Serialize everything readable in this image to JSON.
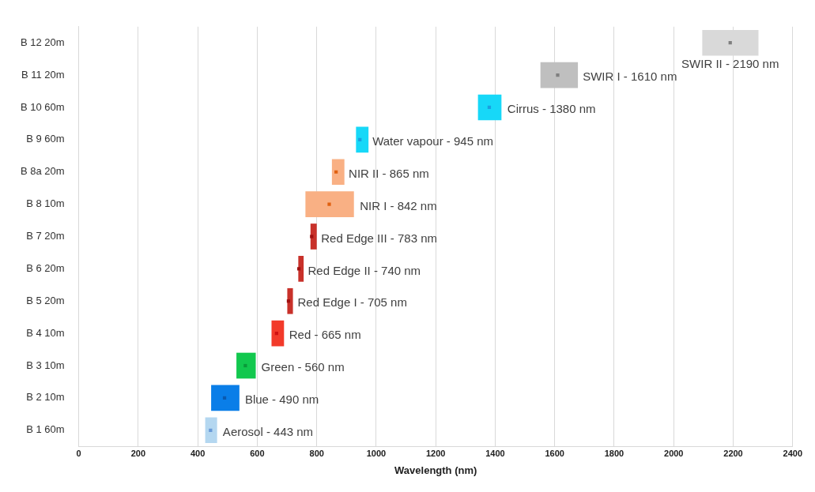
{
  "chart_data": {
    "type": "bar",
    "orientation": "horizontal",
    "xlabel": "Wavelength (nm)",
    "categories": [
      "B 12 20m",
      "B 11 20m",
      "B 10 60m",
      "B 9 60m",
      "B 8a 20m",
      "B 8 10m",
      "B 7 20m",
      "B 6 20m",
      "B 5 20m",
      "B 4 10m",
      "B 3 10m",
      "B 2 10m",
      "B 1 60m"
    ],
    "series": [
      {
        "base": [
          2096,
          1552,
          1342,
          932,
          851,
          762,
          779,
          738,
          701,
          648,
          530,
          445,
          425
        ],
        "values": [
          189,
          126,
          79,
          42,
          42,
          163,
          21,
          18,
          19,
          42,
          65,
          95,
          40
        ],
        "colors": [
          "#d9d9d9",
          "#bfbfbf",
          "#17d8f8",
          "#17d8f8",
          "#f9b084",
          "#f9b084",
          "#c8312a",
          "#c8312a",
          "#c8312a",
          "#f23a2a",
          "#12c84e",
          "#0a7ee8",
          "#b4d7f0"
        ]
      },
      {
        "type": "scatter",
        "marker": "square",
        "values": [
          2190,
          1610,
          1380,
          945,
          865,
          842,
          783,
          740,
          705,
          665,
          560,
          490,
          443
        ],
        "colors": [
          "#7f7f7f",
          "#7f7f7f",
          "#1a9fe0",
          "#1a9fe0",
          "#e06010",
          "#e06010",
          "#a01010",
          "#a01010",
          "#a01010",
          "#d01010",
          "#0a9a3a",
          "#0a5ab0",
          "#6a9ad8"
        ]
      }
    ],
    "annotations": [
      {
        "text": "SWIR II - 2190 nm",
        "x": 2190,
        "y": "B 12 20m"
      },
      {
        "text": "SWIR I - 1610 nm",
        "x": 1610,
        "y": "B 11 20m"
      },
      {
        "text": "Cirrus - 1380 nm",
        "x": 1380,
        "y": "B 10 60m"
      },
      {
        "text": "Water vapour - 945 nm",
        "x": 945,
        "y": "B 9 60m"
      },
      {
        "text": "NIR II - 865 nm",
        "x": 865,
        "y": "B 8a 20m"
      },
      {
        "text": "NIR I - 842 nm",
        "x": 842,
        "y": "B 8 10m"
      },
      {
        "text": "Red Edge III - 783 nm",
        "x": 783,
        "y": "B 7 20m"
      },
      {
        "text": "Red Edge II - 740 nm",
        "x": 740,
        "y": "B 6 20m"
      },
      {
        "text": "Red Edge I - 705 nm",
        "x": 705,
        "y": "B 5 20m"
      },
      {
        "text": "Red - 665 nm",
        "x": 665,
        "y": "B 4 10m"
      },
      {
        "text": "Green - 560 nm",
        "x": 560,
        "y": "B 3 10m"
      },
      {
        "text": "Blue - 490 nm",
        "x": 490,
        "y": "B 2 10m"
      },
      {
        "text": "Aerosol - 443 nm",
        "x": 443,
        "y": "B 1 60m"
      }
    ],
    "xlim": [
      0,
      2400
    ],
    "xticks": [
      0,
      200,
      400,
      600,
      800,
      1000,
      1200,
      1400,
      1600,
      1800,
      2000,
      2200,
      2400
    ],
    "grid": "x",
    "legend": false
  }
}
